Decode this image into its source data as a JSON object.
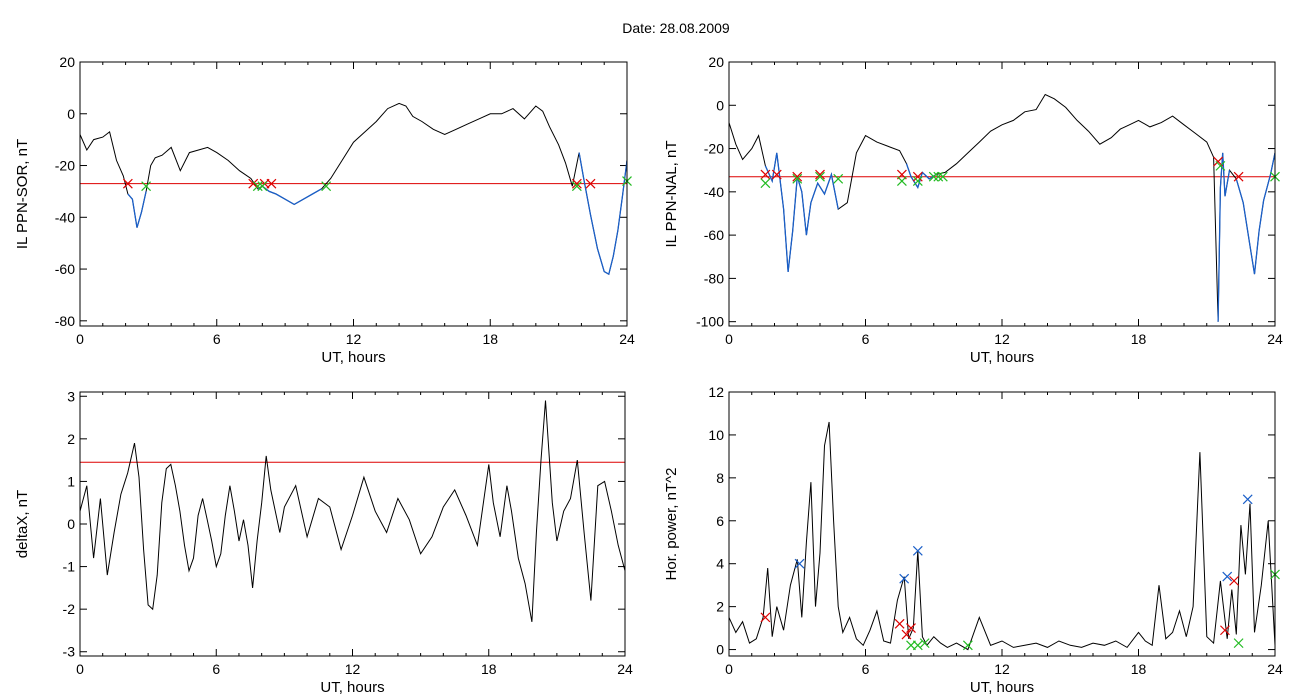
{
  "figure": {
    "date_title": "Date:  28.08.2009"
  },
  "colors": {
    "trace": "#000000",
    "active": "#1a5fc8",
    "threshold": "#dd0000",
    "marker_red": "#dd0000",
    "marker_green": "#22bb22",
    "marker_blue": "#1a5fc8"
  },
  "chart_data": [
    {
      "id": "sor",
      "type": "line",
      "xlabel": "UT, hours",
      "ylabel": "IL PPN-SOR, nT",
      "xlim": [
        0,
        24
      ],
      "ylim": [
        -82,
        20
      ],
      "xticks": [
        0,
        6,
        12,
        18,
        24
      ],
      "yticks": [
        20,
        0,
        -20,
        -40,
        -60,
        -80
      ],
      "threshold": -27,
      "x": [
        0,
        0.3,
        0.6,
        1,
        1.3,
        1.6,
        1.9,
        2.1,
        2.3,
        2.5,
        2.7,
        2.9,
        3.1,
        3.3,
        3.6,
        4,
        4.4,
        4.8,
        5.2,
        5.6,
        6,
        6.5,
        7,
        7.5,
        7.8,
        8,
        8.3,
        8.6,
        9,
        9.4,
        9.8,
        10.2,
        10.6,
        11,
        11.5,
        12,
        12.5,
        13,
        13.5,
        14,
        14.3,
        14.6,
        15,
        15.5,
        16,
        16.5,
        17,
        17.5,
        18,
        18.5,
        19,
        19.5,
        20,
        20.3,
        20.6,
        21,
        21.3,
        21.6,
        21.9,
        22.1,
        22.4,
        22.7,
        23,
        23.2,
        23.4,
        23.6,
        23.8,
        24
      ],
      "y": [
        -8,
        -14,
        -10,
        -9,
        -7,
        -18,
        -24,
        -31,
        -33,
        -44,
        -38,
        -30,
        -20,
        -17,
        -16,
        -13,
        -22,
        -15,
        -14,
        -13,
        -15,
        -18,
        -22,
        -25,
        -29,
        -28,
        -30,
        -31,
        -33,
        -35,
        -33,
        -31,
        -29,
        -25,
        -18,
        -11,
        -7,
        -3,
        2,
        4,
        3,
        -1,
        -3,
        -6,
        -8,
        -6,
        -4,
        -2,
        0,
        0,
        2,
        -2,
        3,
        1,
        -5,
        -12,
        -19,
        -28,
        -15,
        -25,
        -39,
        -52,
        -61,
        -62,
        -55,
        -45,
        -32,
        -18
      ],
      "active_ranges": [
        [
          2.1,
          2.9
        ],
        [
          7.7,
          10.9
        ],
        [
          21.8,
          24
        ]
      ],
      "markers_red": [
        [
          2.1,
          -27
        ],
        [
          7.6,
          -27
        ],
        [
          8.1,
          -27
        ],
        [
          8.4,
          -27
        ],
        [
          21.8,
          -27
        ],
        [
          22.4,
          -27
        ]
      ],
      "markers_green": [
        [
          2.9,
          -28
        ],
        [
          7.8,
          -28
        ],
        [
          8.0,
          -28
        ],
        [
          10.8,
          -28
        ],
        [
          21.8,
          -28
        ],
        [
          24,
          -26
        ]
      ]
    },
    {
      "id": "nal",
      "type": "line",
      "xlabel": "UT, hours",
      "ylabel": "IL PPN-NAL, nT",
      "xlim": [
        0,
        24
      ],
      "ylim": [
        -102,
        20
      ],
      "xticks": [
        0,
        6,
        12,
        18,
        24
      ],
      "yticks": [
        20,
        0,
        -20,
        -40,
        -60,
        -80,
        -100
      ],
      "threshold": -33,
      "x": [
        0,
        0.3,
        0.6,
        1,
        1.3,
        1.6,
        1.9,
        2.1,
        2.4,
        2.6,
        2.8,
        3.0,
        3.2,
        3.4,
        3.6,
        3.9,
        4.2,
        4.5,
        4.8,
        5.2,
        5.6,
        6,
        6.5,
        7,
        7.5,
        7.8,
        8.0,
        8.3,
        8.5,
        8.8,
        9.1,
        9.5,
        10,
        10.5,
        11,
        11.5,
        12,
        12.5,
        13,
        13.5,
        13.9,
        14.3,
        14.8,
        15.3,
        15.8,
        16.3,
        16.8,
        17.2,
        17.6,
        18,
        18.5,
        19,
        19.5,
        20,
        20.5,
        21,
        21.3,
        21.5,
        21.6,
        21.7,
        21.8,
        22,
        22.3,
        22.6,
        22.9,
        23.1,
        23.3,
        23.5,
        23.8,
        24
      ],
      "y": [
        -8,
        -18,
        -25,
        -20,
        -14,
        -28,
        -35,
        -22,
        -48,
        -77,
        -58,
        -33,
        -40,
        -60,
        -45,
        -36,
        -41,
        -32,
        -48,
        -45,
        -22,
        -14,
        -17,
        -19,
        -21,
        -27,
        -33,
        -38,
        -31,
        -34,
        -32,
        -31,
        -27,
        -22,
        -17,
        -12,
        -9,
        -7,
        -3,
        -2,
        5,
        3,
        -1,
        -7,
        -12,
        -18,
        -15,
        -11,
        -9,
        -7,
        -10,
        -8,
        -5,
        -9,
        -13,
        -17,
        -24,
        -100,
        -38,
        -22,
        -42,
        -30,
        -34,
        -45,
        -65,
        -78,
        -58,
        -44,
        -32,
        -22
      ],
      "active_ranges": [
        [
          1.5,
          4.9
        ],
        [
          7.6,
          9.3
        ],
        [
          21.5,
          22.0
        ],
        [
          22.3,
          24
        ]
      ],
      "markers_red": [
        [
          1.6,
          -32
        ],
        [
          2.1,
          -32
        ],
        [
          3.0,
          -33
        ],
        [
          4.0,
          -32
        ],
        [
          7.6,
          -32
        ],
        [
          8.3,
          -33
        ],
        [
          21.5,
          -26
        ],
        [
          22.4,
          -33
        ]
      ],
      "markers_green": [
        [
          1.6,
          -36
        ],
        [
          3.0,
          -34
        ],
        [
          4.0,
          -33
        ],
        [
          4.8,
          -34
        ],
        [
          7.6,
          -35
        ],
        [
          8.3,
          -35
        ],
        [
          9.0,
          -33
        ],
        [
          9.2,
          -33
        ],
        [
          9.4,
          -33
        ],
        [
          21.6,
          -28
        ],
        [
          24,
          -33
        ]
      ]
    },
    {
      "id": "deltax",
      "type": "line",
      "xlabel": "UT, hours",
      "ylabel": "deltaX, nT",
      "xlim": [
        0,
        24
      ],
      "ylim": [
        -3.1,
        3.1
      ],
      "xticks": [
        0,
        6,
        12,
        18,
        24
      ],
      "yticks": [
        3,
        2,
        1,
        0,
        -1,
        -2,
        -3
      ],
      "threshold": 1.45,
      "x": [
        0,
        0.3,
        0.6,
        0.9,
        1.2,
        1.5,
        1.8,
        2.1,
        2.4,
        2.6,
        2.8,
        3.0,
        3.2,
        3.4,
        3.6,
        3.8,
        4.0,
        4.2,
        4.4,
        4.6,
        4.8,
        5.0,
        5.2,
        5.4,
        5.6,
        5.8,
        6.0,
        6.2,
        6.4,
        6.6,
        6.8,
        7.0,
        7.2,
        7.4,
        7.6,
        7.8,
        8.0,
        8.2,
        8.4,
        8.6,
        8.8,
        9.0,
        9.5,
        10,
        10.5,
        11,
        11.5,
        12,
        12.5,
        13,
        13.5,
        14,
        14.5,
        15,
        15.5,
        16,
        16.5,
        17,
        17.5,
        18,
        18.2,
        18.5,
        18.8,
        19,
        19.3,
        19.6,
        19.9,
        20.1,
        20.3,
        20.5,
        20.8,
        21,
        21.3,
        21.6,
        21.9,
        22.2,
        22.5,
        22.8,
        23.1,
        23.4,
        23.7,
        24
      ],
      "y": [
        0.3,
        0.9,
        -0.8,
        0.6,
        -1.2,
        -0.2,
        0.7,
        1.2,
        1.9,
        1.1,
        -0.6,
        -1.9,
        -2.0,
        -1.2,
        0.5,
        1.3,
        1.4,
        0.9,
        0.3,
        -0.5,
        -1.1,
        -0.8,
        0.2,
        0.6,
        0.1,
        -0.4,
        -1.0,
        -0.7,
        0.2,
        0.9,
        0.3,
        -0.4,
        0.1,
        -0.5,
        -1.5,
        -0.4,
        0.5,
        1.6,
        0.8,
        0.3,
        -0.2,
        0.4,
        0.9,
        -0.3,
        0.6,
        0.4,
        -0.6,
        0.2,
        1.1,
        0.3,
        -0.2,
        0.6,
        0.1,
        -0.7,
        -0.3,
        0.4,
        0.8,
        0.2,
        -0.5,
        1.4,
        0.5,
        -0.3,
        0.9,
        0.3,
        -0.8,
        -1.4,
        -2.3,
        -0.2,
        1.5,
        2.9,
        0.5,
        -0.4,
        0.3,
        0.6,
        1.5,
        -0.2,
        -1.8,
        0.9,
        1.0,
        0.3,
        -0.5,
        -1.1
      ]
    },
    {
      "id": "power",
      "type": "line",
      "xlabel": "UT, hours",
      "ylabel": "Hor. power, nT^2",
      "xlim": [
        0,
        24
      ],
      "ylim": [
        -0.3,
        12
      ],
      "xticks": [
        0,
        6,
        12,
        18,
        24
      ],
      "yticks": [
        12,
        10,
        8,
        6,
        4,
        2,
        0
      ],
      "x": [
        0,
        0.3,
        0.6,
        0.9,
        1.2,
        1.5,
        1.7,
        1.9,
        2.1,
        2.4,
        2.7,
        3.0,
        3.2,
        3.4,
        3.6,
        3.8,
        4.0,
        4.2,
        4.4,
        4.6,
        4.8,
        5.0,
        5.3,
        5.6,
        5.9,
        6.2,
        6.5,
        6.8,
        7.1,
        7.4,
        7.7,
        7.9,
        8.1,
        8.3,
        8.5,
        8.7,
        9.0,
        9.3,
        9.6,
        10,
        10.5,
        11,
        11.5,
        12,
        12.5,
        13,
        13.5,
        14,
        14.5,
        15,
        15.5,
        16,
        16.5,
        17,
        17.5,
        18,
        18.3,
        18.6,
        18.9,
        19.2,
        19.5,
        19.8,
        20.1,
        20.4,
        20.7,
        21,
        21.3,
        21.6,
        21.9,
        22.1,
        22.3,
        22.5,
        22.7,
        22.9,
        23.1,
        23.4,
        23.7,
        24
      ],
      "y": [
        1.5,
        0.8,
        1.3,
        0.3,
        0.5,
        1.5,
        3.8,
        0.6,
        2.0,
        0.9,
        3.0,
        4.2,
        1.5,
        5.0,
        7.8,
        2.0,
        4.5,
        9.5,
        10.6,
        6.0,
        2.0,
        0.8,
        1.5,
        0.5,
        0.2,
        0.9,
        1.8,
        0.4,
        0.3,
        2.3,
        3.4,
        0.5,
        1.0,
        4.6,
        0.6,
        0.2,
        0.6,
        0.3,
        0.1,
        0.3,
        0.0,
        1.5,
        0.2,
        0.4,
        0.1,
        0.2,
        0.3,
        0.1,
        0.4,
        0.2,
        0.1,
        0.3,
        0.2,
        0.4,
        0.1,
        0.8,
        0.4,
        0.2,
        3.0,
        0.5,
        0.8,
        1.8,
        0.6,
        2.0,
        9.2,
        0.6,
        0.3,
        3.2,
        0.5,
        2.8,
        0.7,
        5.8,
        3.5,
        6.8,
        0.8,
        3.0,
        6.0,
        0.2
      ],
      "markers_red": [
        [
          1.6,
          1.5
        ],
        [
          7.5,
          1.2
        ],
        [
          7.8,
          0.7
        ],
        [
          8.0,
          1.0
        ],
        [
          21.8,
          0.9
        ],
        [
          22.2,
          3.2
        ]
      ],
      "markers_green": [
        [
          8.0,
          0.2
        ],
        [
          8.3,
          0.2
        ],
        [
          8.6,
          0.3
        ],
        [
          10.5,
          0.2
        ],
        [
          22.4,
          0.3
        ],
        [
          24,
          3.5
        ]
      ],
      "markers_blue": [
        [
          3.1,
          4.0
        ],
        [
          7.7,
          3.3
        ],
        [
          8.3,
          4.6
        ],
        [
          21.9,
          3.4
        ],
        [
          22.8,
          7.0
        ]
      ]
    }
  ]
}
